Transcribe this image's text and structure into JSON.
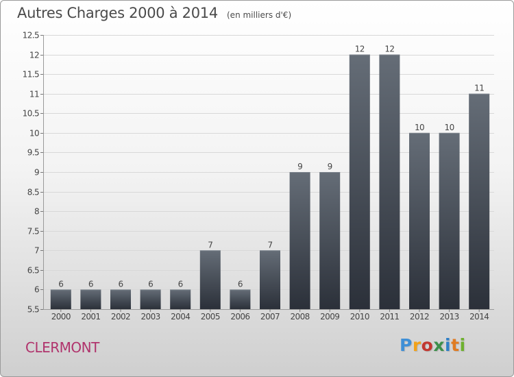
{
  "header": {
    "title": "Autres Charges 2000 à 2014",
    "subtitle": "(en milliers d'€)"
  },
  "footer": {
    "city": "CLERMONT",
    "brand": "Proxiti",
    "brand_colors": [
      "#3f8fd6",
      "#f2a21a",
      "#c2372f",
      "#3d8f4a",
      "#2f7fc6",
      "#e07b22",
      "#6fb12f"
    ]
  },
  "chart_data": {
    "type": "bar",
    "title": "Autres Charges 2000 à 2014",
    "subtitle": "(en milliers d'€)",
    "xlabel": "",
    "ylabel": "",
    "categories": [
      "2000",
      "2001",
      "2002",
      "2003",
      "2004",
      "2005",
      "2006",
      "2007",
      "2008",
      "2009",
      "2010",
      "2011",
      "2012",
      "2013",
      "2014"
    ],
    "values": [
      6,
      6,
      6,
      6,
      6,
      7,
      6,
      7,
      9,
      9,
      12,
      12,
      10,
      10,
      11
    ],
    "data_labels": [
      "6",
      "6",
      "6",
      "6",
      "6",
      "7",
      "6",
      "7",
      "9",
      "9",
      "12",
      "12",
      "10",
      "10",
      "11"
    ],
    "ylim": [
      5.5,
      12.5
    ],
    "yticks": [
      5.5,
      6,
      6.5,
      7,
      7.5,
      8,
      8.5,
      9,
      9.5,
      10,
      10.5,
      11,
      11.5,
      12,
      12.5
    ],
    "ytick_labels": [
      "5.5",
      "6",
      "6.5",
      "7",
      "7.5",
      "8",
      "8.5",
      "9",
      "9.5",
      "10",
      "10.5",
      "11",
      "11.5",
      "12",
      "12.5"
    ],
    "grid": "horizontal",
    "legend": "none",
    "colors": {
      "bar_top": "#656d77",
      "bar_bottom": "#2b3039",
      "grid": "#d8d8d8",
      "axis_text": "#444444"
    }
  }
}
